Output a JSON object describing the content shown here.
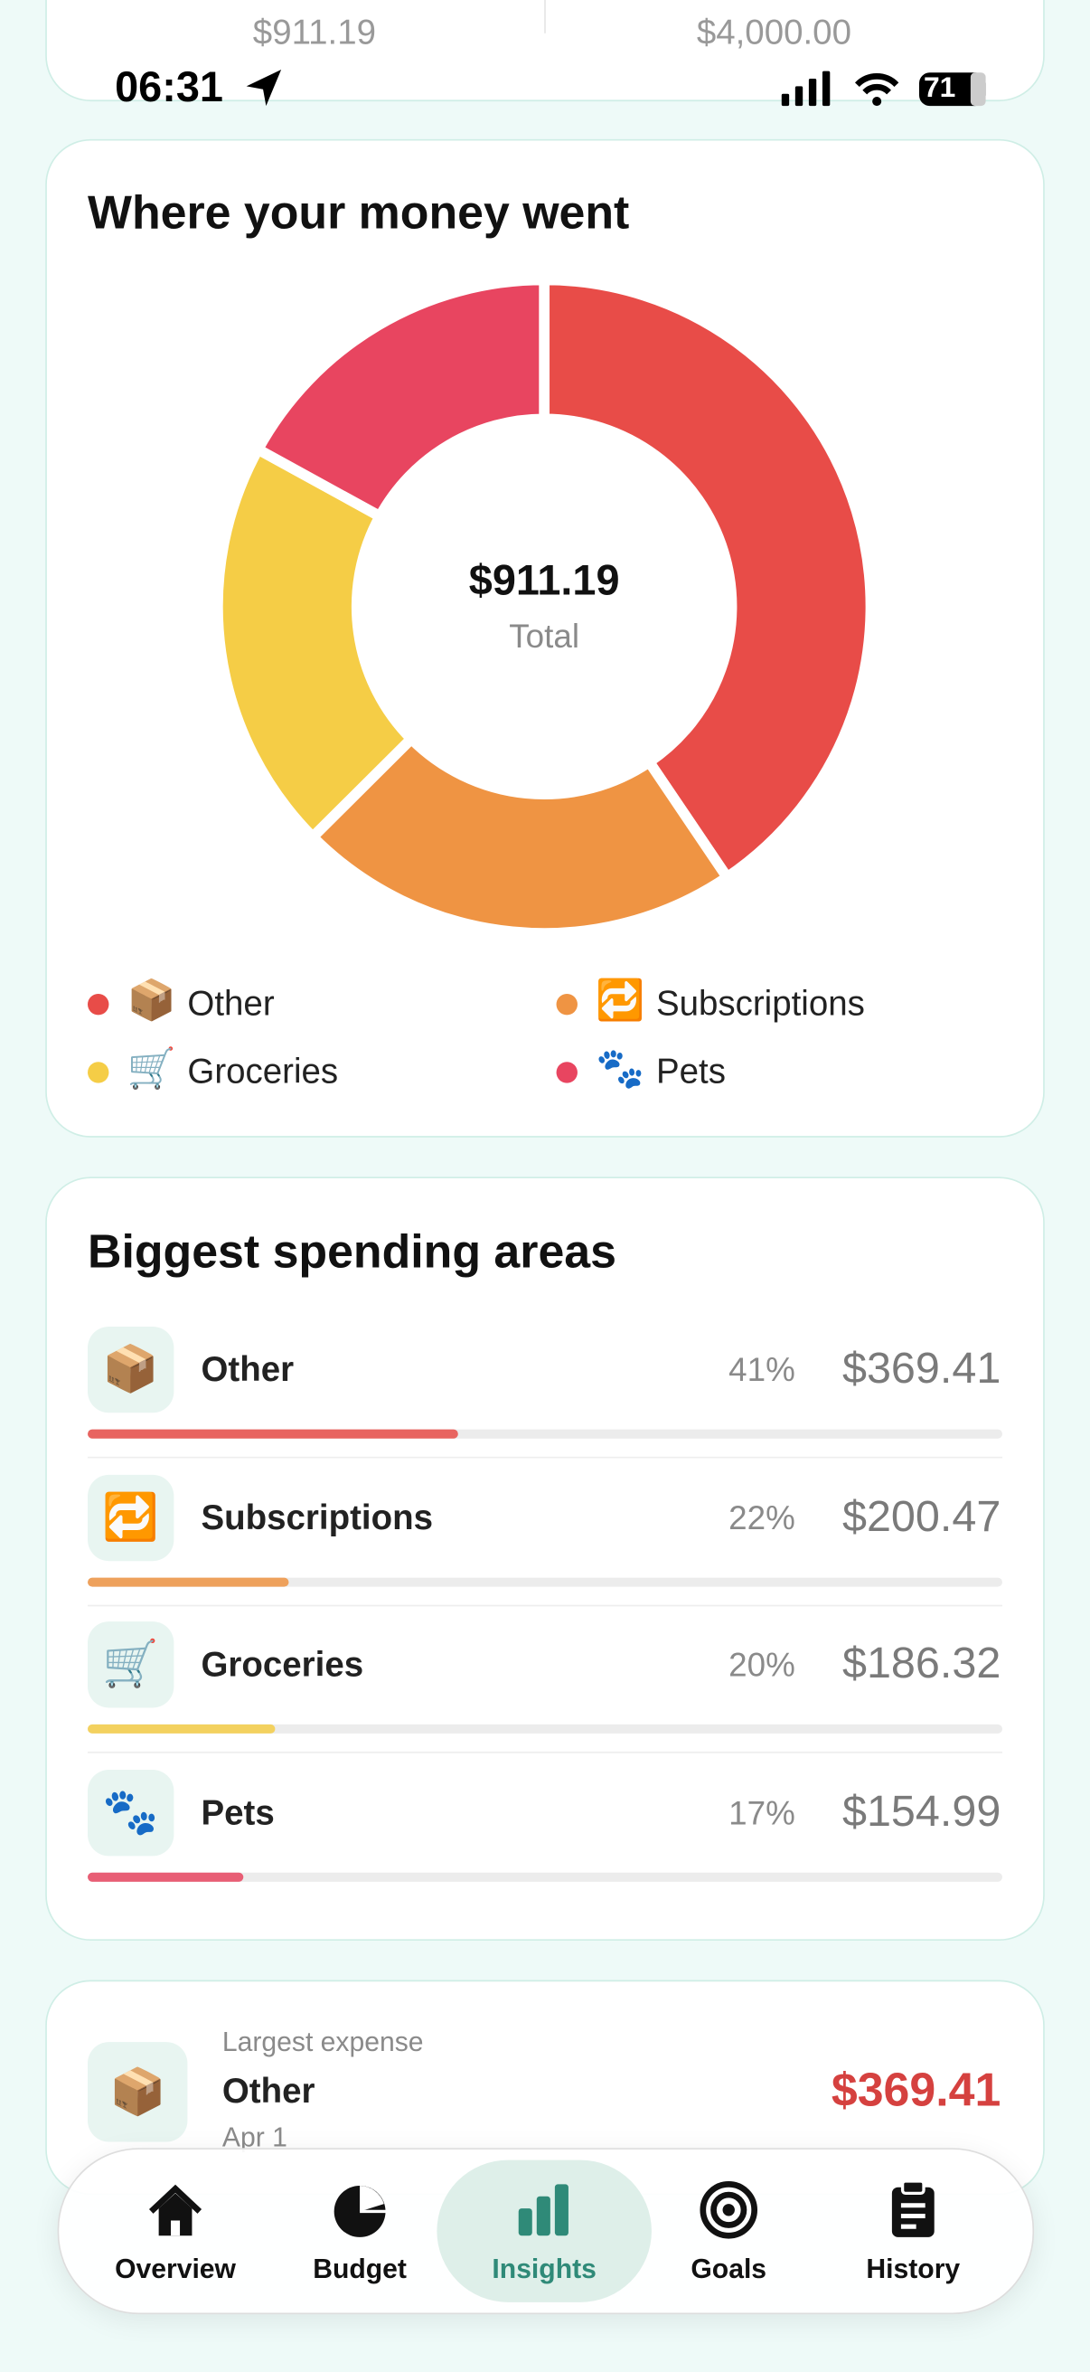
{
  "status_bar": {
    "time": "06:31",
    "battery": "71"
  },
  "summary": {
    "spent": "$911.19",
    "budget": "$4,000.00"
  },
  "chart_data": {
    "type": "donut",
    "title": "Where your money went",
    "center_value": "$911.19",
    "center_label": "Total",
    "categories": [
      "Other",
      "Subscriptions",
      "Groceries",
      "Pets"
    ],
    "icons": [
      "📦",
      "🔁",
      "🛒",
      "🐾"
    ],
    "values": [
      369.41,
      200.47,
      186.32,
      154.99
    ],
    "colors": [
      "#e84c48",
      "#ef9443",
      "#f5cd46",
      "#e84560"
    ]
  },
  "spending": {
    "title": "Biggest spending areas",
    "items": [
      {
        "percent": "41%",
        "amount": "$369.41"
      },
      {
        "percent": "22%",
        "amount": "$200.47"
      },
      {
        "percent": "20%",
        "amount": "$186.32"
      },
      {
        "percent": "17%",
        "amount": "$154.99"
      }
    ]
  },
  "largest": {
    "label": "Largest expense",
    "icon": "📦",
    "name": "Other",
    "date": "Apr 1",
    "amount": "$369.41"
  },
  "nav": {
    "items": [
      {
        "label": "Overview",
        "active": false
      },
      {
        "label": "Budget",
        "active": false
      },
      {
        "label": "Insights",
        "active": true
      },
      {
        "label": "Goals",
        "active": false
      },
      {
        "label": "History",
        "active": false
      }
    ]
  }
}
